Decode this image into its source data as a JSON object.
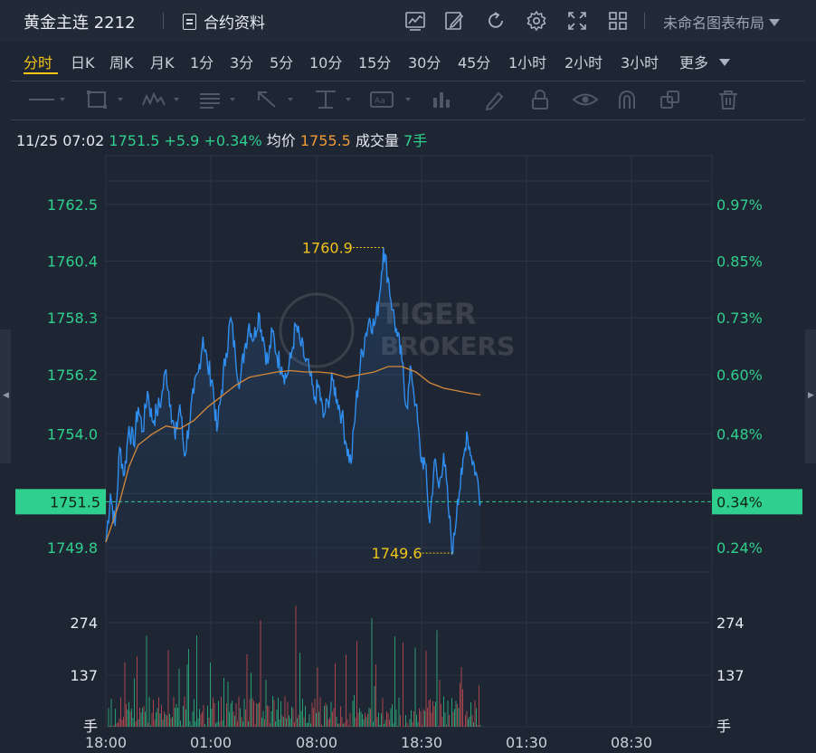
{
  "header": {
    "title": "黄金主连 2212",
    "info_label": "合约资料",
    "layout_label": "未命名图表布局",
    "icons": [
      "indicator-chart-icon",
      "draw-edit-icon",
      "refresh-icon",
      "settings-gear-icon",
      "fullscreen-icon",
      "grid-layout-icon"
    ]
  },
  "periods": {
    "items": [
      "分时",
      "日K",
      "周K",
      "月K",
      "1分",
      "3分",
      "5分",
      "10分",
      "15分",
      "30分",
      "45分",
      "1小时",
      "2小时",
      "3小时",
      "更多"
    ],
    "active": "分时"
  },
  "drawing_tools": [
    "line-tool-icon",
    "rectangle-tool-icon",
    "wave-tool-icon",
    "text-list-tool-icon",
    "arrow-tool-icon",
    "measure-tool-icon",
    "label-tool-icon",
    "bar-tool-icon",
    "pencil-icon",
    "lock-icon",
    "eye-icon",
    "magnet-icon",
    "copy-icon",
    "trash-icon"
  ],
  "quote": {
    "time": "11/25 07:02",
    "price": "1751.5",
    "change": "+5.9",
    "change_pct": "+0.34%",
    "avg_label": "均价",
    "avg_value": "1755.5",
    "volume_label": "成交量",
    "volume_value": "7手"
  },
  "watermark": "TIGER BROKERS",
  "colors": {
    "price_line": "#2f8ef0",
    "avg_line": "#d4893a",
    "up": "#2fcf8d",
    "down": "#e0525a",
    "highlight": "#f0c419",
    "background": "#1f2633"
  },
  "chart_data": {
    "type": "line",
    "x_ticks": [
      "18:00",
      "01:00",
      "08:00",
      "18:30",
      "01:30",
      "08:30"
    ],
    "y_price_ticks": [
      "1762.5",
      "1760.4",
      "1758.3",
      "1756.2",
      "1754.0",
      "1749.8"
    ],
    "y_pct_ticks": [
      "0.97%",
      "0.85%",
      "0.73%",
      "0.60%",
      "0.48%",
      "0.24%"
    ],
    "ylim": [
      1748.9,
      1764.3
    ],
    "current_price": "1751.5",
    "current_pct": "0.34%",
    "high_label": "1760.9",
    "low_label": "1749.6",
    "volume_ticks": [
      "274",
      "137",
      "手"
    ],
    "series": [
      {
        "name": "price",
        "points": [
          [
            0,
            1750.0
          ],
          [
            2,
            1751.8
          ],
          [
            4,
            1750.6
          ],
          [
            6,
            1753.5
          ],
          [
            8,
            1752.5
          ],
          [
            10,
            1754.3
          ],
          [
            12,
            1753.6
          ],
          [
            14,
            1755.0
          ],
          [
            16,
            1754.1
          ],
          [
            18,
            1755.6
          ],
          [
            20,
            1754.5
          ],
          [
            22,
            1754.8
          ],
          [
            24,
            1755.3
          ],
          [
            26,
            1756.4
          ],
          [
            28,
            1755.1
          ],
          [
            30,
            1753.8
          ],
          [
            32,
            1755.1
          ],
          [
            34,
            1753.2
          ],
          [
            36,
            1754.4
          ],
          [
            38,
            1755.5
          ],
          [
            40,
            1756.3
          ],
          [
            42,
            1757.6
          ],
          [
            44,
            1756.5
          ],
          [
            46,
            1756.0
          ],
          [
            48,
            1754.1
          ],
          [
            50,
            1755.6
          ],
          [
            52,
            1757.0
          ],
          [
            54,
            1758.3
          ],
          [
            56,
            1756.9
          ],
          [
            58,
            1755.9
          ],
          [
            60,
            1757.2
          ],
          [
            62,
            1758.1
          ],
          [
            64,
            1757.5
          ],
          [
            66,
            1758.5
          ],
          [
            68,
            1757.6
          ],
          [
            70,
            1756.6
          ],
          [
            72,
            1757.8
          ],
          [
            74,
            1756.9
          ],
          [
            76,
            1756.5
          ],
          [
            78,
            1756.1
          ],
          [
            80,
            1756.8
          ],
          [
            82,
            1758.0
          ],
          [
            84,
            1757.4
          ],
          [
            86,
            1756.8
          ],
          [
            88,
            1756.3
          ],
          [
            90,
            1755.3
          ],
          [
            92,
            1755.8
          ],
          [
            94,
            1754.6
          ],
          [
            96,
            1755.2
          ],
          [
            98,
            1756.0
          ],
          [
            100,
            1755.3
          ],
          [
            102,
            1754.7
          ],
          [
            104,
            1753.6
          ],
          [
            106,
            1752.9
          ],
          [
            108,
            1755.0
          ],
          [
            110,
            1756.6
          ],
          [
            112,
            1757.6
          ],
          [
            114,
            1758.3
          ],
          [
            116,
            1758.0
          ],
          [
            118,
            1758.9
          ],
          [
            120,
            1760.9
          ],
          [
            122,
            1759.8
          ],
          [
            124,
            1758.6
          ],
          [
            126,
            1757.6
          ],
          [
            128,
            1756.7
          ],
          [
            130,
            1755.0
          ],
          [
            132,
            1756.4
          ],
          [
            134,
            1755.1
          ],
          [
            136,
            1753.2
          ],
          [
            138,
            1752.9
          ],
          [
            140,
            1750.7
          ],
          [
            142,
            1753.0
          ],
          [
            144,
            1752.0
          ],
          [
            146,
            1753.3
          ],
          [
            148,
            1751.3
          ],
          [
            150,
            1749.6
          ],
          [
            152,
            1751.6
          ],
          [
            154,
            1752.5
          ],
          [
            156,
            1754.1
          ],
          [
            158,
            1753.2
          ],
          [
            160,
            1752.6
          ],
          [
            162,
            1751.5
          ]
        ]
      },
      {
        "name": "average",
        "points": [
          [
            0,
            1750.0
          ],
          [
            6,
            1751.5
          ],
          [
            10,
            1752.8
          ],
          [
            14,
            1753.6
          ],
          [
            20,
            1754.0
          ],
          [
            26,
            1754.3
          ],
          [
            32,
            1754.2
          ],
          [
            38,
            1754.5
          ],
          [
            44,
            1755.0
          ],
          [
            50,
            1755.4
          ],
          [
            56,
            1755.8
          ],
          [
            62,
            1756.1
          ],
          [
            68,
            1756.2
          ],
          [
            74,
            1756.3
          ],
          [
            80,
            1756.35
          ],
          [
            86,
            1756.3
          ],
          [
            92,
            1756.3
          ],
          [
            98,
            1756.25
          ],
          [
            104,
            1756.1
          ],
          [
            110,
            1756.2
          ],
          [
            116,
            1756.3
          ],
          [
            122,
            1756.5
          ],
          [
            128,
            1756.5
          ],
          [
            134,
            1756.3
          ],
          [
            140,
            1755.9
          ],
          [
            146,
            1755.7
          ],
          [
            152,
            1755.6
          ],
          [
            158,
            1755.5
          ],
          [
            162,
            1755.45
          ]
        ]
      }
    ],
    "volume_max": 380
  }
}
